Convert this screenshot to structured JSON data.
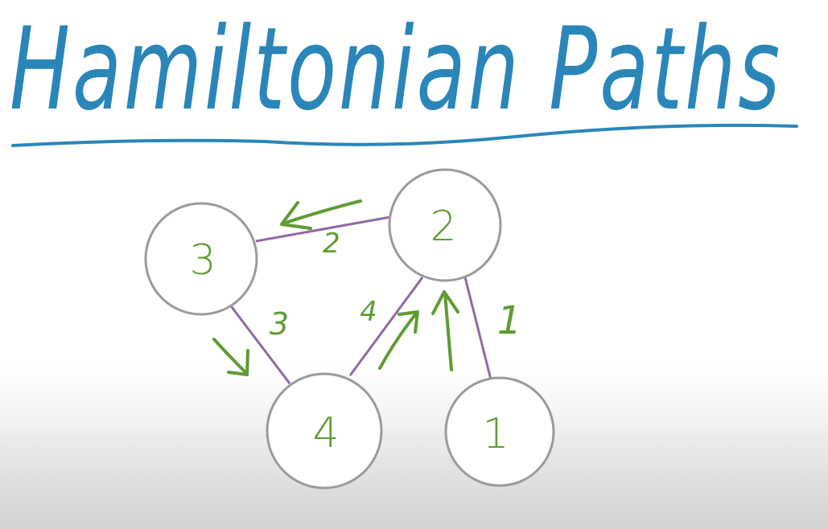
{
  "title": "Hamiltonian Paths",
  "colors": {
    "title_ink": "#2a86b8",
    "node_outline": "#9a9a9a",
    "edge_ink": "#8e6aa3",
    "label_ink": "#5f9c34",
    "board": "#ffffff"
  },
  "graph": {
    "nodes": [
      {
        "id": "3",
        "label": "3"
      },
      {
        "id": "2",
        "label": "2"
      },
      {
        "id": "4",
        "label": "4"
      },
      {
        "id": "1",
        "label": "1"
      }
    ],
    "edges": [
      {
        "from": "3",
        "to": "2",
        "weight": "2"
      },
      {
        "from": "3",
        "to": "4",
        "weight": "3"
      },
      {
        "from": "4",
        "to": "2",
        "weight": "4"
      },
      {
        "from": "2",
        "to": "1",
        "weight": "1"
      }
    ],
    "path_arrows": [
      {
        "from": "1",
        "to": "2"
      },
      {
        "from": "2",
        "to": "3"
      },
      {
        "from": "3",
        "to": "4"
      },
      {
        "from": "4",
        "to": "2"
      }
    ]
  }
}
